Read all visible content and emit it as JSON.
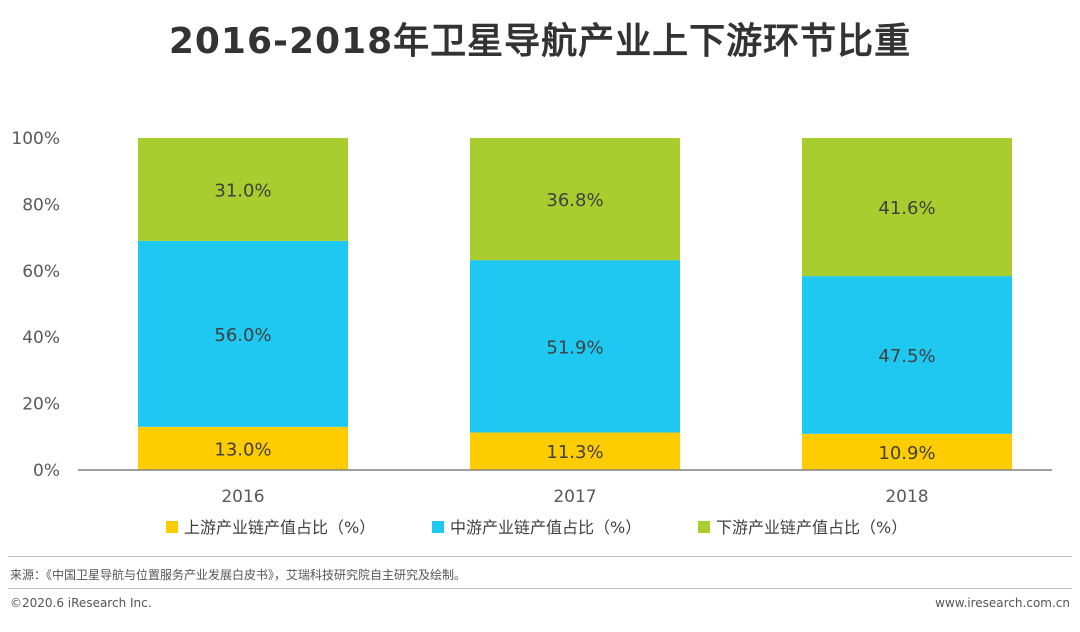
{
  "title": "2016-2018年卫星导航产业上下游环节比重",
  "chart_data": {
    "type": "bar",
    "stacked": true,
    "categories": [
      "2016",
      "2017",
      "2018"
    ],
    "series": [
      {
        "name": "上游产业链产值占比（%）",
        "values": [
          13.0,
          11.3,
          10.9
        ],
        "labels": [
          "13.0%",
          "11.3%",
          "10.9%"
        ],
        "color": "#FFCC00"
      },
      {
        "name": "中游产业链产值占比（%）",
        "values": [
          56.0,
          51.9,
          47.5
        ],
        "labels": [
          "56.0%",
          "51.9%",
          "47.5%"
        ],
        "color": "#1FC8F0"
      },
      {
        "name": "下游产业链产值占比（%）",
        "values": [
          31.0,
          36.8,
          41.6
        ],
        "labels": [
          "31.0%",
          "36.8%",
          "41.6%"
        ],
        "color": "#A9CD2E"
      }
    ],
    "yticks": [
      "0%",
      "20%",
      "40%",
      "60%",
      "80%",
      "100%"
    ],
    "ylim": [
      0,
      100
    ],
    "legend_position": "bottom",
    "grid": false
  },
  "footer": {
    "source": "来源：《中国卫星导航与位置服务产业发展白皮书》，艾瑞科技研究院自主研究及绘制。",
    "copyright": "©2020.6 iResearch Inc.",
    "website": "www.iresearch.com.cn"
  }
}
